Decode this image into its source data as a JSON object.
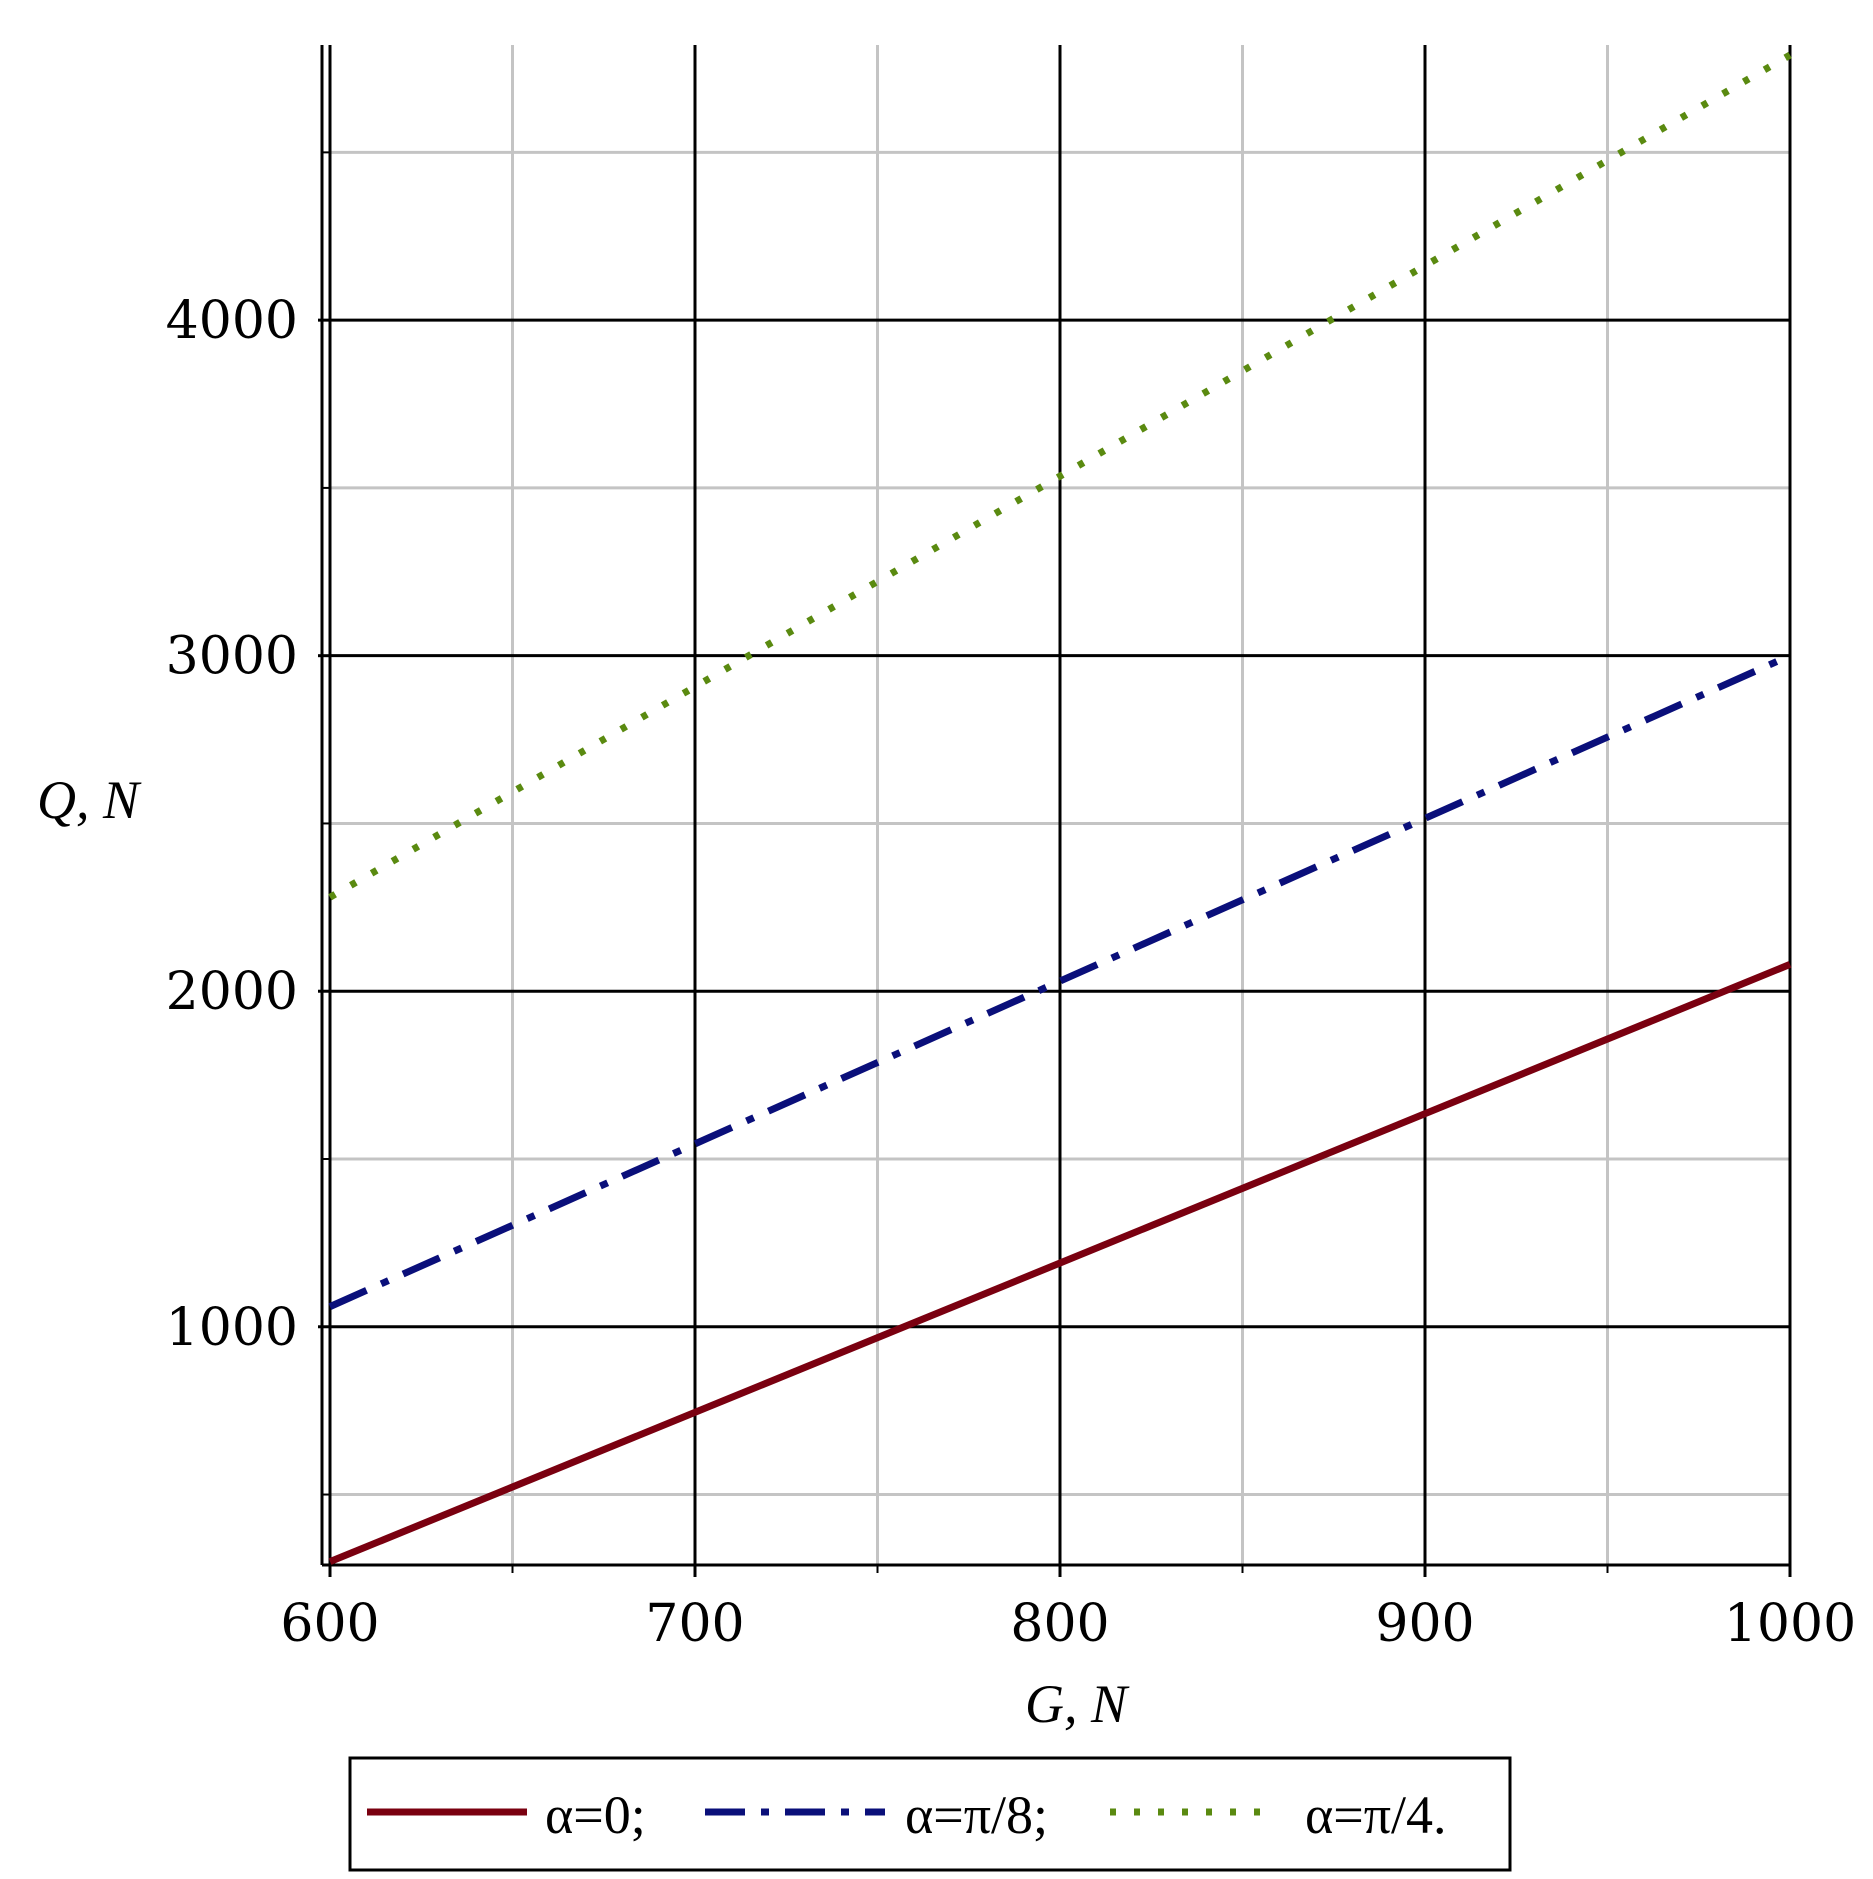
{
  "chart_data": {
    "type": "line",
    "xlabel": "G, N",
    "ylabel": "Q, N",
    "xlim": [
      600,
      1000
    ],
    "ylim": [
      290,
      4820
    ],
    "x_major_ticks": [
      600,
      700,
      800,
      900,
      1000
    ],
    "x_minor_ticks": [
      650,
      750,
      850,
      950
    ],
    "y_major_ticks": [
      1000,
      2000,
      3000,
      4000
    ],
    "y_minor_ticks": [
      500,
      1500,
      2500,
      3500,
      4500
    ],
    "x_tick_labels": [
      "600",
      "700",
      "800",
      "900",
      "1000"
    ],
    "y_tick_labels": [
      "1000",
      "2000",
      "3000",
      "4000"
    ],
    "grid": true,
    "legend_position": "bottom",
    "series": [
      {
        "name": "α=0;",
        "color": "#7a0010",
        "style": "solid",
        "x": [
          600,
          1000
        ],
        "y": [
          300,
          2080
        ]
      },
      {
        "name": "α=π/8;",
        "color": "#0a0f7a",
        "style": "dashdot",
        "x": [
          600,
          1000
        ],
        "y": [
          1060,
          3000
        ]
      },
      {
        "name": "α=π/4.",
        "color": "#5a8a10",
        "style": "dotted",
        "x": [
          600,
          1000
        ],
        "y": [
          2280,
          4790
        ]
      }
    ]
  }
}
